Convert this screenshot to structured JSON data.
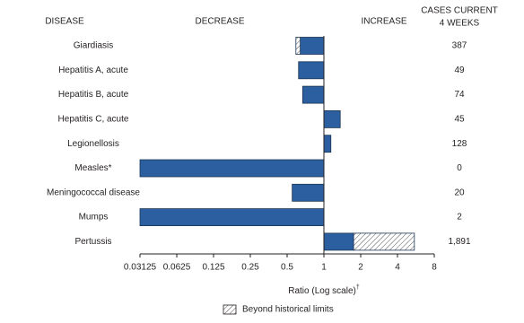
{
  "chart_data": {
    "type": "bar",
    "orientation": "horizontal",
    "headers": {
      "disease": "DISEASE",
      "decrease": "DECREASE",
      "increase": "INCREASE",
      "cases": [
        "CASES CURRENT",
        "4 WEEKS"
      ]
    },
    "categories": [
      "Giardiasis",
      "Hepatitis A, acute",
      "Hepatitis B, acute",
      "Hepatitis C, acute",
      "Legionellosis",
      "Measles*",
      "Meningococcal disease",
      "Mumps",
      "Pertussis"
    ],
    "values": [
      0.59,
      0.62,
      0.67,
      1.36,
      1.14,
      0.03125,
      0.55,
      0.03125,
      5.5
    ],
    "historical_limits": [
      0.64,
      null,
      null,
      null,
      null,
      null,
      null,
      null,
      1.75
    ],
    "cases": [
      "387",
      "49",
      "74",
      "45",
      "128",
      "0",
      "20",
      "2",
      "1,891"
    ],
    "color": "#2b5f9f",
    "xscale": "log",
    "xlim": [
      0.03125,
      8
    ],
    "xticks": [
      0.03125,
      0.0625,
      0.125,
      0.25,
      0.5,
      1,
      2,
      4,
      8
    ],
    "baseline": 1,
    "xlabel": "Ratio (Log scale)",
    "xlabel_mark": "†",
    "legend": "Beyond historical limits"
  }
}
